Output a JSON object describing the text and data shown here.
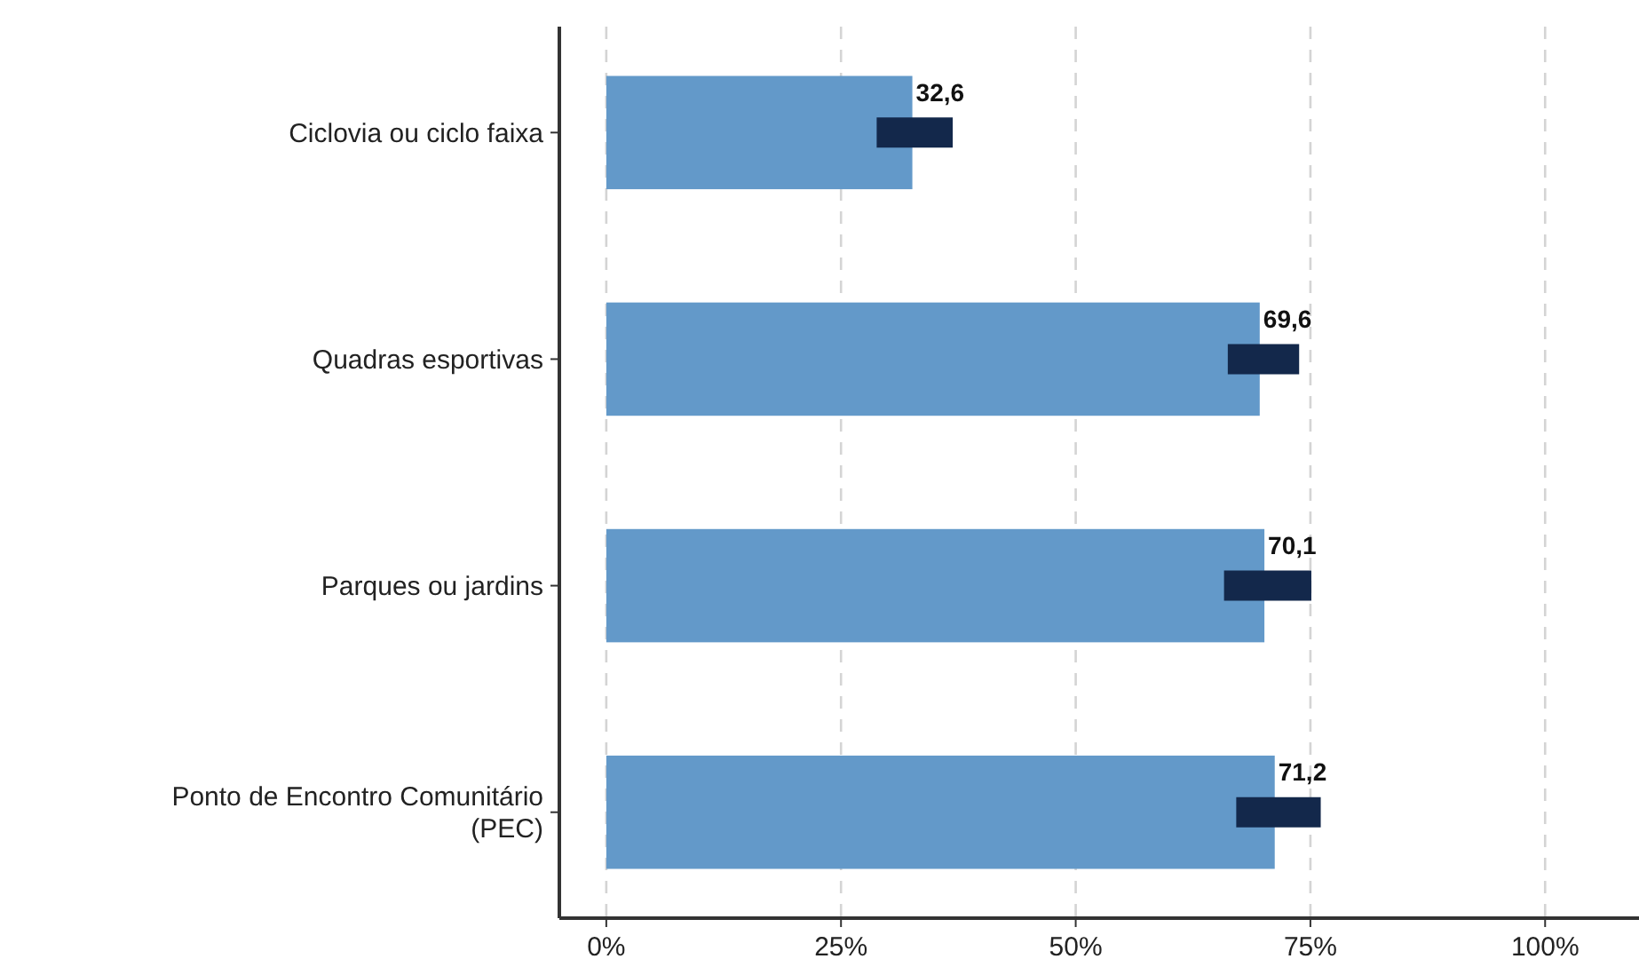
{
  "chart_data": {
    "type": "bar",
    "orientation": "horizontal",
    "categories": [
      "Ciclovia ou ciclo faixa",
      "Quadras esportivas",
      "Parques ou jardins",
      "Ponto de Encontro Comunitário\n(PEC)"
    ],
    "values": [
      32.6,
      69.6,
      70.1,
      71.2
    ],
    "color": "#6399c9",
    "errors": [
      [
        28.8,
        36.9
      ],
      [
        66.2,
        73.8
      ],
      [
        65.8,
        75.1
      ],
      [
        67.1,
        76.1
      ]
    ],
    "value_labels": [
      "32,6",
      "69,6",
      "70,1",
      "71,2"
    ],
    "xlim": [
      -5,
      110
    ],
    "xticks": [
      {
        "value": 0,
        "label": "0%"
      },
      {
        "value": 25,
        "label": "25%"
      },
      {
        "value": 50,
        "label": "50%"
      },
      {
        "value": 75,
        "label": "75%"
      },
      {
        "value": 100,
        "label": "100%"
      }
    ],
    "grid": "x"
  }
}
